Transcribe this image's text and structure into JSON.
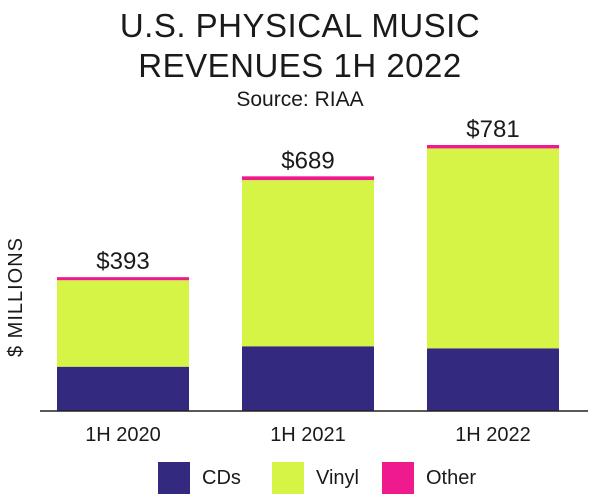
{
  "title_line1": "U.S. PHYSICAL MUSIC",
  "title_line2": "REVENUES 1H 2022",
  "subtitle": "Source: RIAA",
  "colors": {
    "cds": "#33297f",
    "vinyl": "#d5f445",
    "other": "#ee1a8e",
    "axis": "#222222",
    "text": "#1a1a1a"
  },
  "chart_data": {
    "type": "bar",
    "stacked": true,
    "title": "U.S. PHYSICAL MUSIC REVENUES 1H 2022",
    "subtitle": "Source: RIAA",
    "ylabel": "$ MILLIONS",
    "xlabel": "",
    "categories": [
      "1H 2020",
      "1H 2021",
      "1H 2022"
    ],
    "series": [
      {
        "name": "CDs",
        "color": "#33297f",
        "values": [
          130,
          190,
          184
        ]
      },
      {
        "name": "Vinyl",
        "color": "#d5f445",
        "values": [
          254,
          488,
          587
        ]
      },
      {
        "name": "Other",
        "color": "#ee1a8e",
        "values": [
          9,
          11,
          10
        ]
      }
    ],
    "totals": [
      393,
      689,
      781
    ],
    "total_labels": [
      "$393",
      "$689",
      "$781"
    ],
    "ylim": [
      0,
      850
    ],
    "grid": false,
    "legend_position": "bottom"
  }
}
